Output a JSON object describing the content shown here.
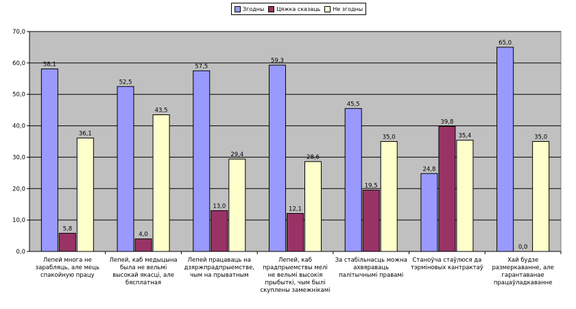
{
  "chart_data": {
    "type": "bar",
    "title": "",
    "xlabel": "",
    "ylabel": "",
    "ylim": [
      0,
      70
    ],
    "yticks": [
      "0,0",
      "10,0",
      "20,0",
      "30,0",
      "40,0",
      "50,0",
      "60,0",
      "70,0"
    ],
    "grid": true,
    "legend_position": "top",
    "categories": [
      "Лепей многа не\nзарабляць, але мець\nспакойную працу",
      "Лепей, каб медыцына\nбыла не вельмі\nвысокай якасці, але\nбясплатная",
      "Лепей працаваць на\nдзяржпрадпрыемстве,\nчым на прыватным",
      "Лепей, каб\nпрадпрыемствы мелі\nне вельмі высокія\nпрыбыткі, чым былі\nскуплены замежнікамі",
      "За стабільнасць можна\nахвяраваць\nпалітычнымі правамі",
      "Станоўча стаўлюся да\nтэрміновых кантрактаў",
      "Хай будзе\nразмеркаванне, але\nгарантаванае\nпрацаўладкаванне"
    ],
    "series": [
      {
        "name": "Згодны",
        "color": "#9999ff",
        "values": [
          58.1,
          52.5,
          57.5,
          59.3,
          45.5,
          24.8,
          65.0
        ],
        "value_labels": [
          "58,1",
          "52,5",
          "57,5",
          "59,3",
          "45,5",
          "24,8",
          "65,0"
        ]
      },
      {
        "name": "Цяжка сказаць",
        "color": "#993366",
        "values": [
          5.8,
          4.0,
          13.0,
          12.1,
          19.5,
          39.8,
          0.0
        ],
        "value_labels": [
          "5,8",
          "4,0",
          "13,0",
          "12,1",
          "19,5",
          "39,8",
          "0,0"
        ]
      },
      {
        "name": "Не згодны",
        "color": "#ffffcc",
        "values": [
          36.1,
          43.5,
          29.4,
          28.6,
          35.0,
          35.4,
          35.0
        ],
        "value_labels": [
          "36,1",
          "43,5",
          "29,4",
          "28,6",
          "35,0",
          "35,4",
          "35,0"
        ]
      }
    ],
    "plot_background": "#c0c0c0"
  }
}
